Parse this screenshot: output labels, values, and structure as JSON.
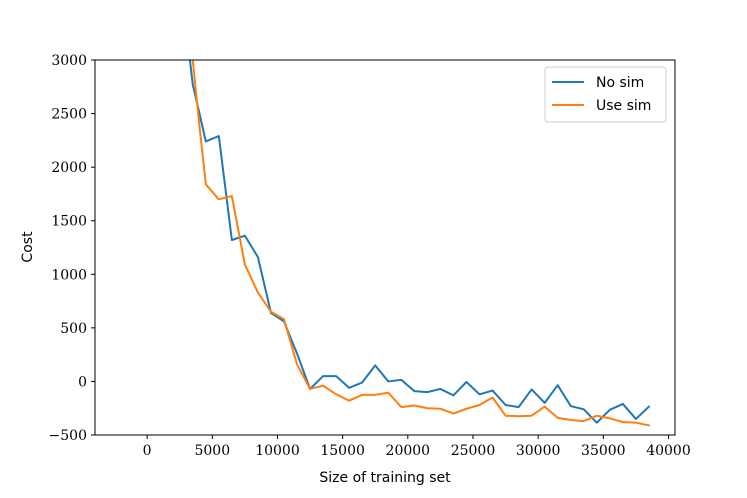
{
  "chart_data": {
    "type": "line",
    "title": "",
    "xlabel": "Size of training set",
    "ylabel": "Cost",
    "xlim": [
      -4000,
      40500
    ],
    "ylim": [
      -500,
      3000
    ],
    "xticks": [
      0,
      5000,
      10000,
      15000,
      20000,
      25000,
      30000,
      35000,
      40000
    ],
    "xtick_labels": [
      "0",
      "5000",
      "10000",
      "15000",
      "20000",
      "25000",
      "30000",
      "35000",
      "40000"
    ],
    "yticks": [
      -500,
      0,
      500,
      1000,
      1500,
      2000,
      2500,
      3000
    ],
    "ytick_labels": [
      "−500",
      "0",
      "500",
      "1000",
      "1500",
      "2000",
      "2500",
      "3000"
    ],
    "grid": false,
    "legend_position": "top-right",
    "series": [
      {
        "name": "No sim",
        "color": "#1f77b4",
        "x": [
          3000,
          3500,
          4000,
          4500,
          5500,
          6500,
          7500,
          8500,
          9500,
          10500,
          11500,
          12500,
          13500,
          14500,
          15500,
          16500,
          17500,
          18500,
          19500,
          20500,
          21500,
          22500,
          23500,
          24500,
          25500,
          26500,
          27500,
          28500,
          29500,
          30500,
          31500,
          32500,
          33500,
          34500,
          35500,
          36500,
          37500,
          38500
        ],
        "values": [
          3300,
          2770,
          2510,
          2240,
          2290,
          1320,
          1360,
          1160,
          640,
          560,
          260,
          -70,
          50,
          50,
          -60,
          -10,
          150,
          0,
          15,
          -90,
          -100,
          -70,
          -130,
          -5,
          -120,
          -85,
          -220,
          -240,
          -75,
          -200,
          -35,
          -230,
          -260,
          -385,
          -265,
          -210,
          -350,
          -235
        ]
      },
      {
        "name": "Use sim",
        "color": "#ff7f0e",
        "x": [
          3000,
          3500,
          4000,
          4500,
          5500,
          6500,
          7500,
          8500,
          9500,
          10500,
          11500,
          12500,
          13500,
          14500,
          15500,
          16500,
          17500,
          18500,
          19500,
          20500,
          21500,
          22500,
          23500,
          24500,
          25500,
          26500,
          27500,
          28500,
          29500,
          30500,
          31500,
          32500,
          33500,
          34500,
          35500,
          36500,
          37500,
          38500
        ],
        "values": [
          3500,
          3000,
          2400,
          1840,
          1700,
          1730,
          1090,
          830,
          650,
          580,
          160,
          -70,
          -40,
          -120,
          -180,
          -125,
          -125,
          -105,
          -240,
          -225,
          -250,
          -255,
          -300,
          -255,
          -220,
          -150,
          -320,
          -325,
          -320,
          -235,
          -340,
          -360,
          -370,
          -320,
          -345,
          -380,
          -385,
          -410
        ]
      }
    ]
  }
}
